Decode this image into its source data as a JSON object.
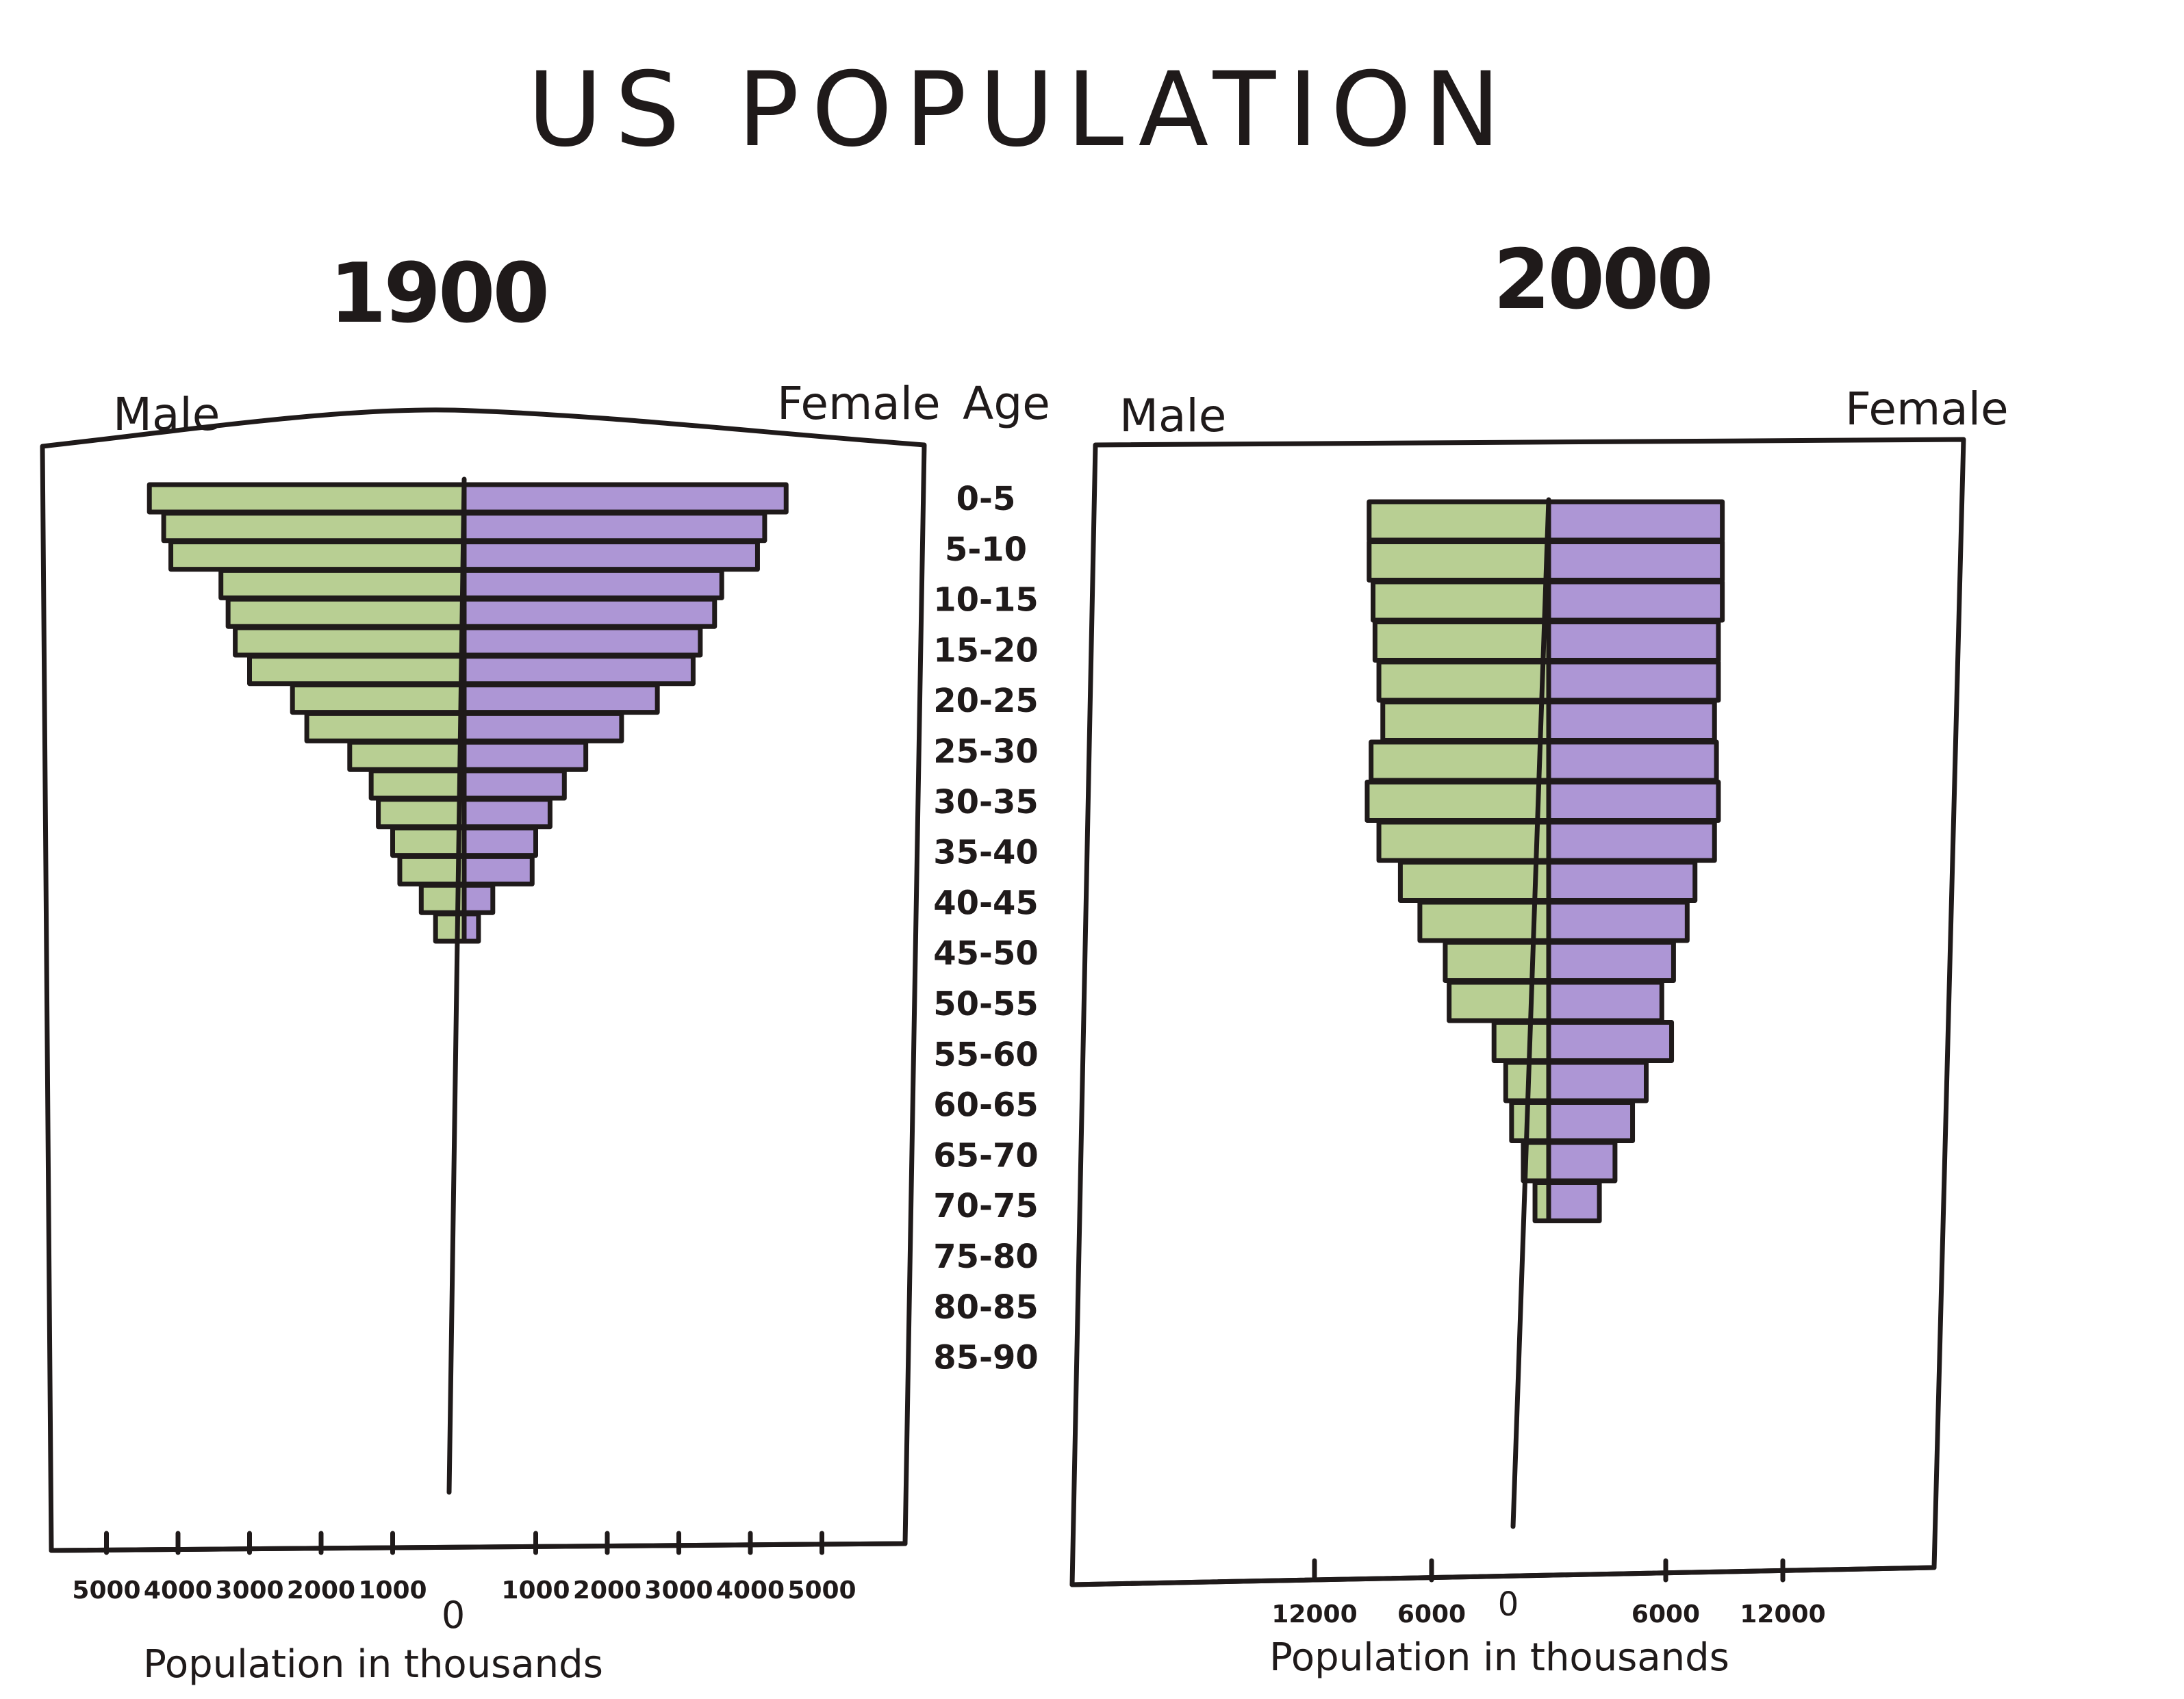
{
  "title": "US POPULATION",
  "colors": {
    "male": "#7da83a",
    "female": "#6a3fb3",
    "ink": "#1f1a1a"
  },
  "age_axis_title": "Age",
  "chart_data": [
    {
      "type": "bar",
      "title": "1900",
      "left_label": "Male",
      "right_label": "Female",
      "xlabel": "Population in thousands",
      "zero_label": "0",
      "xlim": [
        -5000,
        5000
      ],
      "male_ticks": [
        "5000",
        "4000",
        "3000",
        "2000",
        "1000"
      ],
      "female_ticks": [
        "1000",
        "2000",
        "3000",
        "4000",
        "5000"
      ],
      "categories": [
        "0-5",
        "5-10",
        "10-15",
        "15-20",
        "20-25",
        "25-30",
        "30-35",
        "35-40",
        "40-45",
        "45-50",
        "50-55",
        "55-60",
        "60-65",
        "65-70",
        "70-75",
        "75-80"
      ],
      "series": [
        {
          "name": "Male",
          "values": [
            4400,
            4200,
            4100,
            3400,
            3300,
            3200,
            3000,
            2400,
            2200,
            1600,
            1300,
            1200,
            1000,
            900,
            600,
            400
          ]
        },
        {
          "name": "Female",
          "values": [
            4500,
            4200,
            4100,
            3600,
            3500,
            3300,
            3200,
            2700,
            2200,
            1700,
            1400,
            1200,
            1000,
            950,
            400,
            200
          ]
        }
      ]
    },
    {
      "type": "bar",
      "title": "2000",
      "left_label": "Male",
      "right_label": "Female",
      "xlabel": "Population in thousands",
      "zero_label": "0",
      "xlim": [
        -12000,
        12000
      ],
      "male_ticks": [
        "12000",
        "6000"
      ],
      "female_ticks": [
        "6000",
        "12000"
      ],
      "categories": [
        "0-5",
        "5-10",
        "10-15",
        "15-20",
        "20-25",
        "25-30",
        "30-35",
        "35-40",
        "40-45",
        "45-50",
        "50-55",
        "55-60",
        "60-65",
        "65-70",
        "70-75",
        "75-80",
        "80-85",
        "85-90"
      ],
      "series": [
        {
          "name": "Male",
          "values": [
            9200,
            9200,
            9000,
            8900,
            8700,
            8500,
            9100,
            9300,
            8700,
            7600,
            6600,
            5300,
            5100,
            2800,
            2200,
            1900,
            1300,
            700
          ]
        },
        {
          "name": "Female",
          "values": [
            8900,
            8900,
            8900,
            8700,
            8700,
            8500,
            8600,
            8700,
            8500,
            7500,
            7100,
            6400,
            5800,
            6300,
            5000,
            4300,
            3400,
            2600
          ]
        }
      ]
    }
  ]
}
